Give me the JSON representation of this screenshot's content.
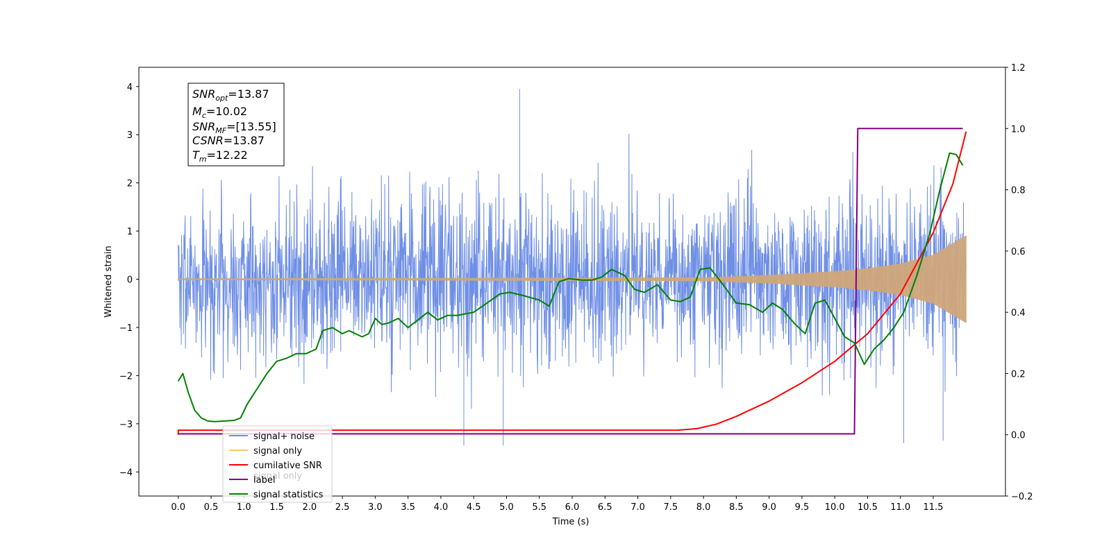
{
  "chart_data": {
    "type": "line",
    "xlabel": "Time (s)",
    "ylabel": "Whitened strain",
    "xlim": [
      -0.6,
      12.6
    ],
    "ylim": [
      -4.5,
      4.4
    ],
    "y2lim": [
      -0.2,
      1.2
    ],
    "x_ticks": [
      "0.0",
      "0.5",
      "1.0",
      "1.5",
      "2.0",
      "2.5",
      "3.0",
      "3.5",
      "4.0",
      "4.5",
      "5.0",
      "5.5",
      "6.0",
      "6.5",
      "7.0",
      "7.5",
      "8.0",
      "8.5",
      "9.0",
      "9.5",
      "10.0",
      "10.5",
      "11.0",
      "11.5"
    ],
    "y_ticks": [
      "4",
      "3",
      "2",
      "1",
      "0",
      "−1",
      "−2",
      "−3",
      "−4"
    ],
    "y2_ticks": [
      "1.2",
      "1.0",
      "0.8",
      "0.6",
      "0.4",
      "0.2",
      "0.0",
      "−0.2"
    ],
    "stats_box": {
      "snr_opt": "=13.87",
      "mc": "=10.02",
      "snr_mf": "=[13.55]",
      "csnr": "=13.87",
      "tm": "=12.22"
    },
    "series": [
      {
        "name": "signal+ noise",
        "axis": "left",
        "color": "#6f8fe6",
        "x_range": [
          0.0,
          12.0
        ],
        "std": 1.0,
        "spikes_max": 3.95,
        "spikes_min": -3.5,
        "annotation_extremes": [
          [
            5.2,
            3.95
          ],
          [
            4.35,
            -3.45
          ],
          [
            4.95,
            -3.45
          ],
          [
            11.05,
            -3.4
          ],
          [
            11.65,
            -3.35
          ]
        ]
      },
      {
        "name": "signal only",
        "axis": "left",
        "color": "#cfa77a",
        "envelope": [
          [
            0.0,
            0.01
          ],
          [
            8.0,
            0.03
          ],
          [
            9.0,
            0.08
          ],
          [
            10.0,
            0.16
          ],
          [
            10.5,
            0.22
          ],
          [
            11.0,
            0.32
          ],
          [
            11.5,
            0.5
          ],
          [
            12.0,
            0.9
          ]
        ]
      },
      {
        "name": "cumilative SNR",
        "axis": "right",
        "color": "#ff0000",
        "points": [
          [
            0.0,
            0.0
          ],
          [
            0.0,
            0.015
          ],
          [
            7.6,
            0.015
          ],
          [
            7.9,
            0.02
          ],
          [
            8.2,
            0.035
          ],
          [
            8.5,
            0.06
          ],
          [
            9.0,
            0.11
          ],
          [
            9.5,
            0.17
          ],
          [
            10.0,
            0.24
          ],
          [
            10.5,
            0.33
          ],
          [
            11.0,
            0.46
          ],
          [
            11.5,
            0.66
          ],
          [
            11.8,
            0.82
          ],
          [
            12.0,
            0.99
          ]
        ]
      },
      {
        "name": "label",
        "axis": "right",
        "color": "#800080",
        "points": [
          [
            0.0,
            0.003
          ],
          [
            10.3,
            0.003
          ],
          [
            10.35,
            1.0
          ],
          [
            11.95,
            1.0
          ]
        ]
      },
      {
        "name": "signal statistics",
        "axis": "right",
        "color": "#008000",
        "points": [
          [
            0.0,
            0.175
          ],
          [
            0.07,
            0.2
          ],
          [
            0.15,
            0.14
          ],
          [
            0.25,
            0.08
          ],
          [
            0.35,
            0.055
          ],
          [
            0.45,
            0.045
          ],
          [
            0.55,
            0.043
          ],
          [
            0.7,
            0.045
          ],
          [
            0.85,
            0.047
          ],
          [
            0.95,
            0.055
          ],
          [
            1.05,
            0.1
          ],
          [
            1.2,
            0.15
          ],
          [
            1.35,
            0.2
          ],
          [
            1.5,
            0.24
          ],
          [
            1.65,
            0.25
          ],
          [
            1.8,
            0.265
          ],
          [
            1.95,
            0.265
          ],
          [
            2.1,
            0.28
          ],
          [
            2.2,
            0.34
          ],
          [
            2.35,
            0.35
          ],
          [
            2.5,
            0.33
          ],
          [
            2.6,
            0.34
          ],
          [
            2.8,
            0.32
          ],
          [
            2.9,
            0.33
          ],
          [
            3.0,
            0.38
          ],
          [
            3.1,
            0.36
          ],
          [
            3.2,
            0.365
          ],
          [
            3.35,
            0.38
          ],
          [
            3.5,
            0.35
          ],
          [
            3.65,
            0.375
          ],
          [
            3.8,
            0.4
          ],
          [
            3.95,
            0.375
          ],
          [
            4.1,
            0.39
          ],
          [
            4.25,
            0.39
          ],
          [
            4.5,
            0.4
          ],
          [
            4.7,
            0.43
          ],
          [
            4.9,
            0.46
          ],
          [
            5.05,
            0.465
          ],
          [
            5.25,
            0.455
          ],
          [
            5.5,
            0.44
          ],
          [
            5.65,
            0.42
          ],
          [
            5.8,
            0.5
          ],
          [
            5.95,
            0.51
          ],
          [
            6.15,
            0.505
          ],
          [
            6.3,
            0.505
          ],
          [
            6.45,
            0.515
          ],
          [
            6.6,
            0.54
          ],
          [
            6.8,
            0.52
          ],
          [
            6.95,
            0.475
          ],
          [
            7.1,
            0.465
          ],
          [
            7.3,
            0.49
          ],
          [
            7.5,
            0.44
          ],
          [
            7.65,
            0.435
          ],
          [
            7.8,
            0.45
          ],
          [
            7.95,
            0.54
          ],
          [
            8.1,
            0.545
          ],
          [
            8.3,
            0.49
          ],
          [
            8.5,
            0.43
          ],
          [
            8.7,
            0.425
          ],
          [
            8.9,
            0.4
          ],
          [
            9.05,
            0.43
          ],
          [
            9.2,
            0.41
          ],
          [
            9.4,
            0.36
          ],
          [
            9.55,
            0.33
          ],
          [
            9.7,
            0.43
          ],
          [
            9.85,
            0.44
          ],
          [
            10.0,
            0.38
          ],
          [
            10.15,
            0.32
          ],
          [
            10.3,
            0.3
          ],
          [
            10.45,
            0.23
          ],
          [
            10.6,
            0.28
          ],
          [
            10.75,
            0.31
          ],
          [
            10.9,
            0.35
          ],
          [
            11.05,
            0.4
          ],
          [
            11.25,
            0.52
          ],
          [
            11.45,
            0.66
          ],
          [
            11.6,
            0.8
          ],
          [
            11.75,
            0.92
          ],
          [
            11.85,
            0.915
          ],
          [
            11.95,
            0.88
          ]
        ]
      }
    ],
    "legend": {
      "placement": "lower-left",
      "entries": [
        "signal+ noise",
        "signal only",
        "cumilative SNR",
        "label",
        "signal statistics"
      ],
      "ghost_text": "signal only"
    }
  }
}
